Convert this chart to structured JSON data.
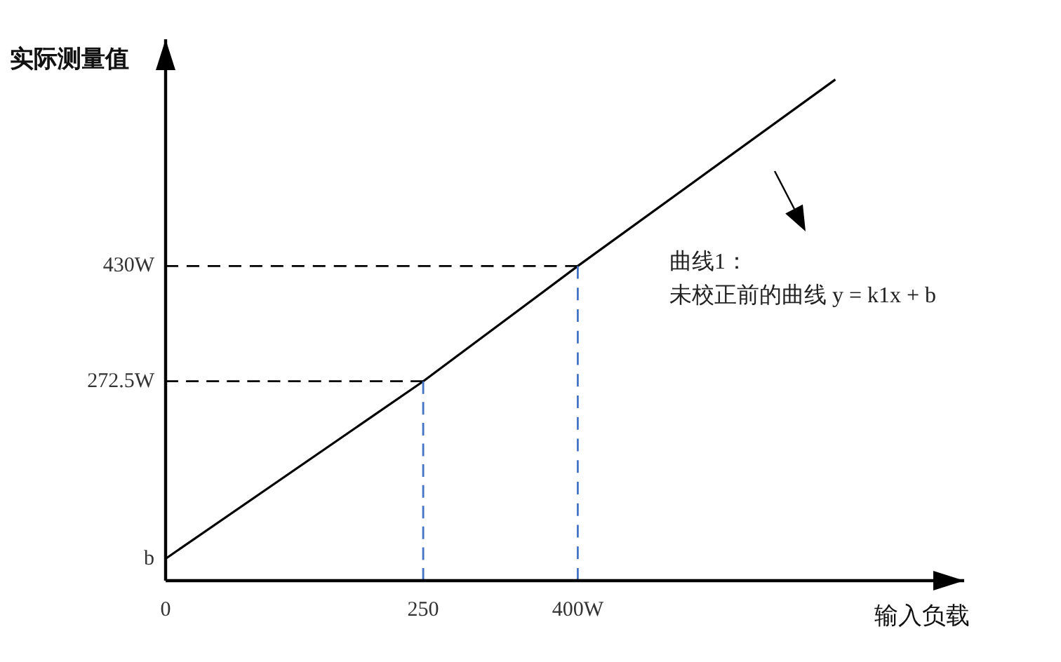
{
  "chart_data": {
    "type": "line",
    "xlabel": "输入负载",
    "ylabel": "实际测量值",
    "xlim": [
      0,
      775
    ],
    "ylim": [
      0,
      740
    ],
    "xticks": [
      0,
      250,
      {
        "value": 400,
        "label": "400W"
      }
    ],
    "yticks": [
      {
        "value": 30,
        "label": "b"
      },
      {
        "value": 272.5,
        "label": "272.5W"
      },
      {
        "value": 430,
        "label": "430W"
      }
    ],
    "series": [
      {
        "type": "line",
        "color": "#000000",
        "line_style": "solid",
        "x": [
          0,
          250,
          400,
          650
        ],
        "values": [
          30,
          272.5,
          430,
          685
        ]
      },
      {
        "type": "line",
        "color": "#000000",
        "line_style": "dashed",
        "x": [
          0,
          250
        ],
        "values": [
          272.5,
          272.5
        ]
      },
      {
        "type": "line",
        "color": "#000000",
        "line_style": "dashed",
        "x": [
          0,
          400
        ],
        "values": [
          430,
          430
        ]
      },
      {
        "type": "line",
        "color": "#4472c4",
        "line_style": "dashed",
        "x": [
          250,
          250
        ],
        "values": [
          0,
          272.5
        ]
      },
      {
        "type": "line",
        "color": "#4472c4",
        "line_style": "dashed",
        "x": [
          400,
          400
        ],
        "values": [
          0,
          430
        ]
      }
    ],
    "annotations": [
      "曲线1：",
      "未校正前的曲线 y = k1x + b"
    ]
  }
}
